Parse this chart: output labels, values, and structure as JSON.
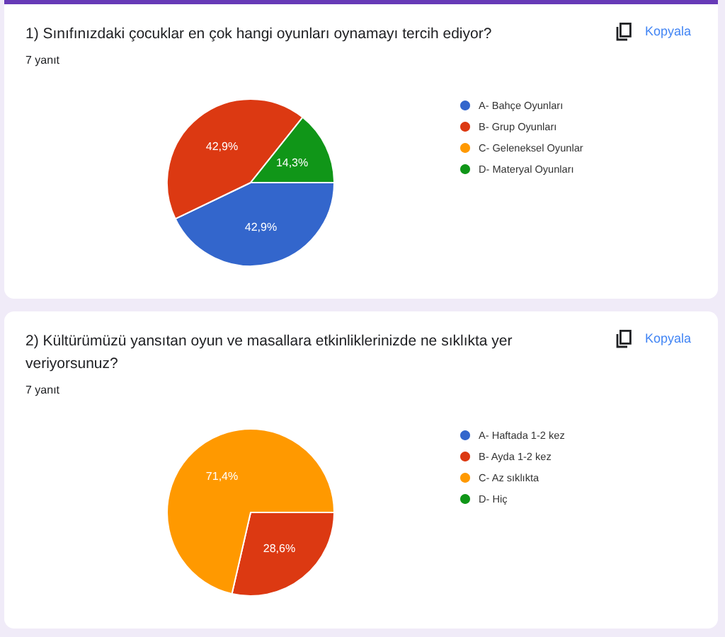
{
  "chart_data": [
    {
      "type": "pie",
      "title": "1) Sınıfınızdaki çocuklar en çok hangi oyunları oynamayı tercih ediyor?",
      "subtitle": "7 yanıt",
      "annotations": [
        "Kopyala"
      ],
      "categories": [
        "A- Bahçe Oyunları",
        "B- Grup Oyunları",
        "C- Geleneksel Oyunlar",
        "D- Materyal Oyunları"
      ],
      "values": [
        42.9,
        42.9,
        0,
        14.3
      ],
      "colors": [
        "#3366cc",
        "#dc3912",
        "#ff9900",
        "#109618"
      ],
      "value_labels": [
        "42,9%",
        "42,9%",
        null,
        "14,3%"
      ],
      "legend": "right"
    },
    {
      "type": "pie",
      "title": "2) Kültürümüzü yansıtan oyun ve masallara etkinliklerinizde ne sıklıkta yer veriyorsunuz?",
      "subtitle": "7 yanıt",
      "annotations": [
        "Kopyala"
      ],
      "categories": [
        "A- Haftada 1-2 kez",
        "B- Ayda 1-2 kez",
        "C- Az sıklıkta",
        "D- Hiç"
      ],
      "values": [
        0,
        28.6,
        71.4,
        0
      ],
      "colors": [
        "#3366cc",
        "#dc3912",
        "#ff9900",
        "#109618"
      ],
      "value_labels": [
        null,
        "28,6%",
        "71,4%",
        null
      ],
      "legend": "right"
    }
  ]
}
